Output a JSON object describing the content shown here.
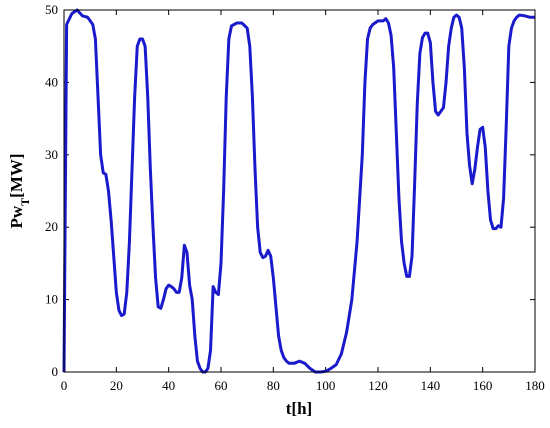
{
  "chart_data": {
    "type": "line",
    "xlabel": "t[h]",
    "ylabel": {
      "main": "Pw",
      "sub": "T",
      "unit": "[MW]"
    },
    "xlim": [
      0,
      180
    ],
    "xticks": [
      0,
      20,
      40,
      60,
      80,
      100,
      120,
      140,
      160,
      180
    ],
    "ylim": [
      0,
      50
    ],
    "yticks": [
      0,
      10,
      20,
      30,
      40,
      50
    ],
    "series": [
      {
        "color": "#1a1acc",
        "x": [
          0,
          1,
          3,
          5,
          7,
          9,
          11,
          12,
          13,
          14,
          15,
          16,
          17,
          18,
          19,
          20,
          21,
          22,
          23,
          24,
          25,
          26,
          27,
          28,
          29,
          30,
          31,
          32,
          33,
          34,
          35,
          36,
          37,
          38,
          39,
          40,
          41,
          42,
          43,
          44,
          45,
          46,
          47,
          48,
          49,
          50,
          51,
          52,
          53,
          54,
          55,
          56,
          57,
          58,
          59,
          60,
          61,
          62,
          63,
          64,
          66,
          68,
          70,
          71,
          72,
          73,
          74,
          75,
          76,
          77,
          78,
          79,
          80,
          81,
          82,
          83,
          84,
          85,
          86,
          88,
          90,
          92,
          94,
          96,
          98,
          100,
          102,
          104,
          106,
          108,
          110,
          112,
          114,
          115,
          116,
          117,
          118,
          120,
          122,
          123,
          124,
          125,
          126,
          127,
          128,
          129,
          130,
          131,
          132,
          133,
          134,
          135,
          136,
          137,
          138,
          139,
          140,
          141,
          142,
          143,
          144,
          145,
          146,
          147,
          148,
          149,
          150,
          151,
          152,
          153,
          154,
          155,
          156,
          157,
          158,
          159,
          160,
          161,
          162,
          163,
          164,
          165,
          166,
          167,
          168,
          169,
          170,
          171,
          172,
          173,
          174,
          176,
          178,
          180
        ],
        "values": [
          0,
          48,
          49.5,
          50,
          49.2,
          49,
          48,
          46,
          38,
          30,
          27.5,
          27.3,
          25,
          21,
          16,
          11,
          8.5,
          7.8,
          8,
          11,
          18,
          28,
          38,
          45,
          46,
          46,
          45,
          38,
          28,
          20,
          13,
          9,
          8.8,
          10,
          11.5,
          12,
          11.8,
          11.5,
          11,
          11,
          13,
          17.5,
          16.5,
          12,
          10,
          5,
          1.5,
          0.5,
          0,
          0,
          0.5,
          3,
          11.8,
          11,
          10.7,
          15,
          25,
          38,
          46,
          47.8,
          48.2,
          48.2,
          47.5,
          45,
          38,
          28,
          20,
          16.5,
          15.8,
          16,
          16.8,
          16,
          13,
          9,
          5,
          3,
          2,
          1.5,
          1.2,
          1.2,
          1.5,
          1.2,
          0.5,
          0,
          0,
          0.1,
          0.5,
          1,
          2.5,
          5.5,
          10,
          18,
          30,
          40,
          46,
          47.5,
          48,
          48.5,
          48.5,
          48.8,
          48.2,
          46.5,
          42,
          33,
          24,
          18,
          15,
          13.2,
          13.2,
          16,
          26,
          37,
          44,
          46.2,
          46.8,
          46.8,
          45.5,
          40,
          36,
          35.5,
          36,
          36.5,
          40,
          45,
          47.5,
          49,
          49.3,
          49,
          47.5,
          42,
          33,
          28.5,
          26,
          28,
          31,
          33.5,
          33.8,
          31,
          25,
          21,
          19.8,
          19.8,
          20.2,
          20,
          24,
          34,
          45,
          47.5,
          48.5,
          49,
          49.3,
          49.2,
          49,
          49
        ]
      }
    ]
  }
}
